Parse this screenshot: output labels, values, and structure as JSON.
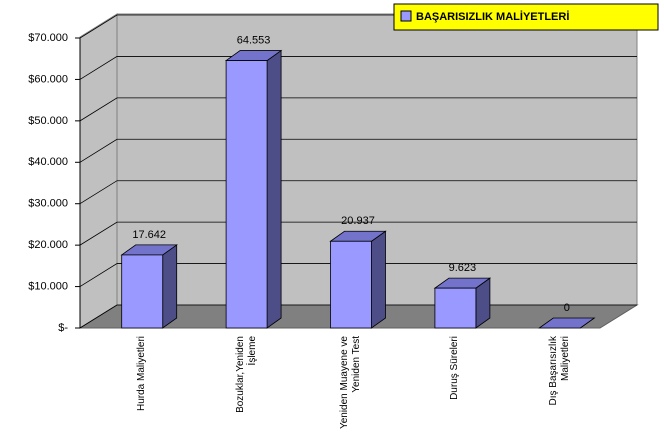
{
  "chart_data": {
    "type": "bar3d",
    "categories": [
      "Hurda Maliyetleri",
      "Bozuklar,Yeniden İşleme",
      "Yeniden Muayene ve Yeniden Test",
      "Duruş Süreleri",
      "Dış Başarısızlık Maliyetleri"
    ],
    "series": [
      {
        "name": "BAŞARISIZLIK MALİYETLERİ",
        "color": "#9999ff",
        "values": [
          17642,
          64553,
          20937,
          9623,
          0
        ],
        "value_labels": [
          "17.642",
          "64.553",
          "20.937",
          "9.623",
          "0"
        ]
      }
    ],
    "ylim": [
      0,
      70000
    ],
    "yticks": [
      {
        "value": 0,
        "label": "$-"
      },
      {
        "value": 10000,
        "label": "$10.000"
      },
      {
        "value": 20000,
        "label": "$20.000"
      },
      {
        "value": 30000,
        "label": "$30.000"
      },
      {
        "value": 40000,
        "label": "$40.000"
      },
      {
        "value": 50000,
        "label": "$50.000"
      },
      {
        "value": 60000,
        "label": "$60.000"
      },
      {
        "value": 70000,
        "label": "$70.000"
      }
    ],
    "grid": true,
    "legend": "top-right"
  }
}
